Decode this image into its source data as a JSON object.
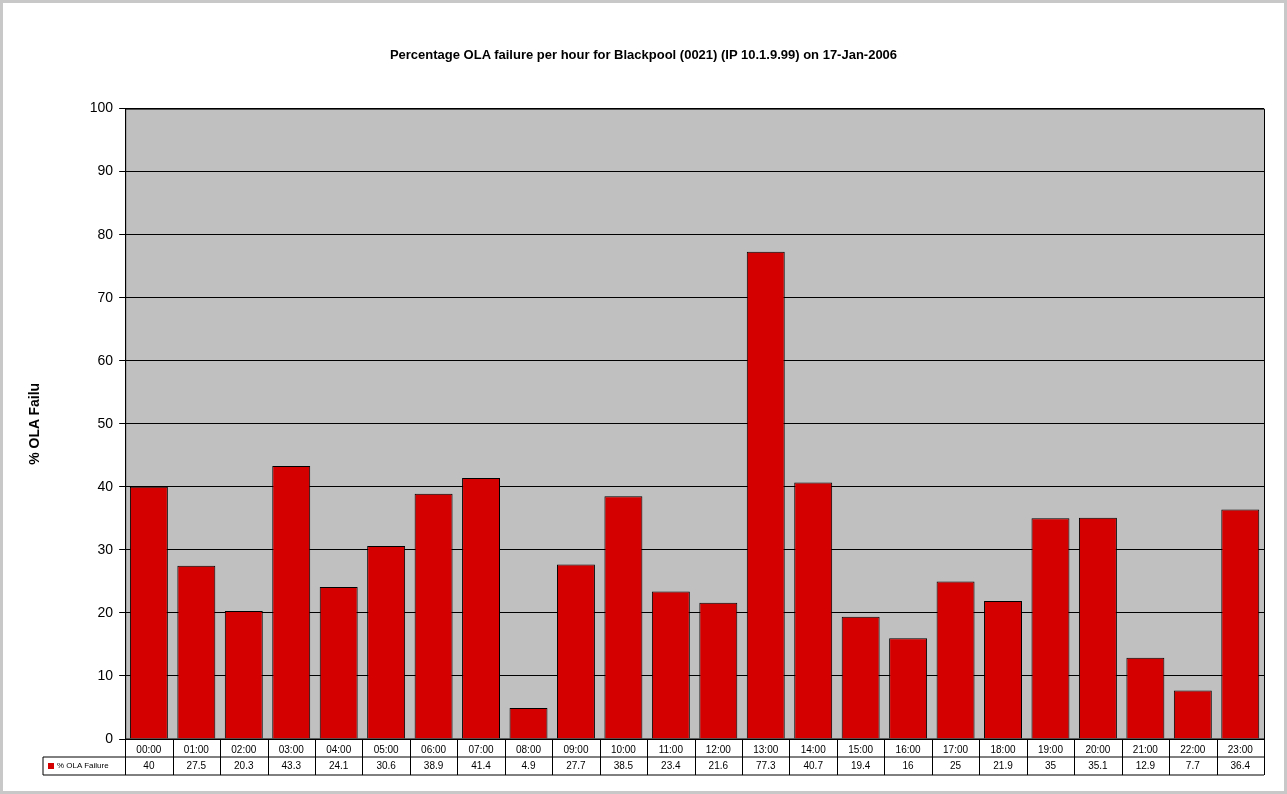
{
  "chart_data": {
    "type": "bar",
    "title": "Percentage OLA failure per hour for Blackpool (0021) (IP 10.1.9.99) on 17-Jan-2006",
    "ylabel": "% OLA Failu",
    "categories": [
      "00:00",
      "01:00",
      "02:00",
      "03:00",
      "04:00",
      "05:00",
      "06:00",
      "07:00",
      "08:00",
      "09:00",
      "10:00",
      "11:00",
      "12:00",
      "13:00",
      "14:00",
      "15:00",
      "16:00",
      "17:00",
      "18:00",
      "19:00",
      "20:00",
      "21:00",
      "22:00",
      "23:00"
    ],
    "series": [
      {
        "name": "% OLA Failure",
        "color": "#d40000",
        "values": [
          40,
          27.5,
          20.3,
          43.3,
          24.1,
          30.6,
          38.9,
          41.4,
          4.9,
          27.7,
          38.5,
          23.4,
          21.6,
          77.3,
          40.7,
          19.4,
          16,
          25,
          21.9,
          35,
          35.1,
          12.9,
          7.7,
          36.4
        ]
      }
    ],
    "ylim": [
      0,
      100
    ],
    "yticks": [
      0,
      10,
      20,
      30,
      40,
      50,
      60,
      70,
      80,
      90,
      100
    ],
    "grid": "y",
    "data_labels": true
  }
}
